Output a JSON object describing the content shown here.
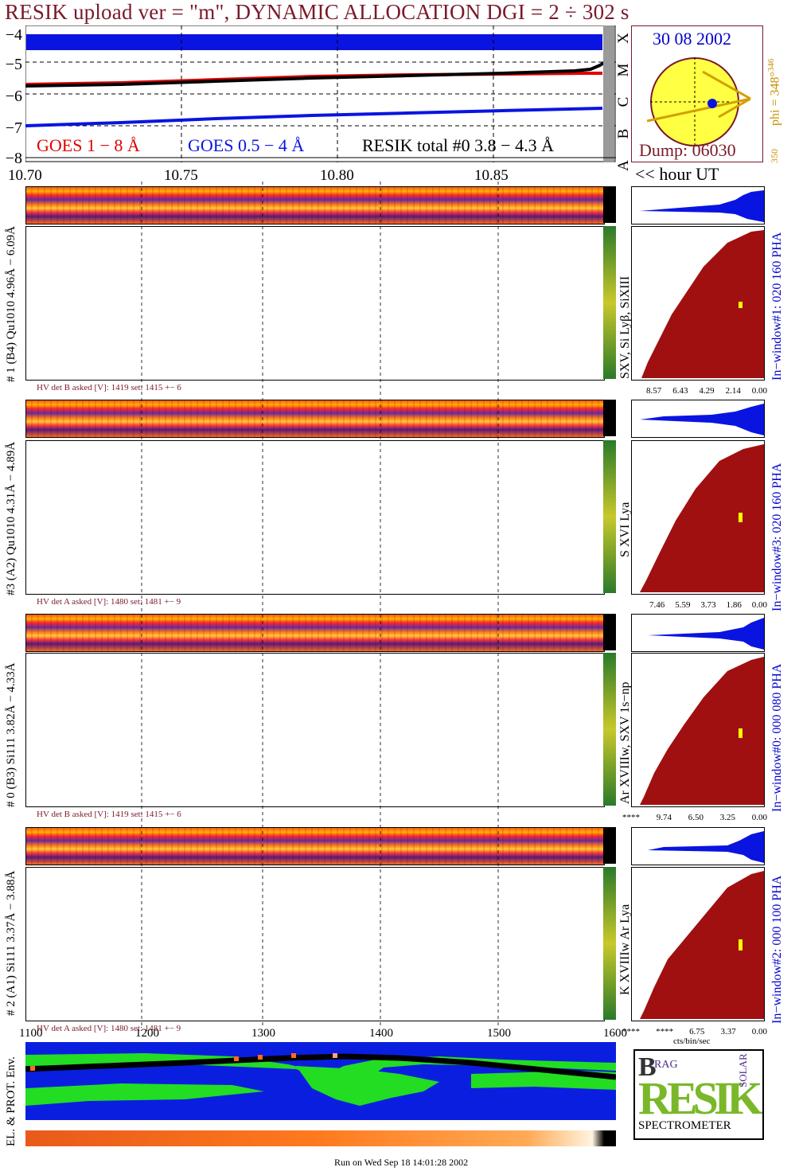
{
  "title": "RESIK upload ver = \"m\", DYNAMIC ALLOCATION  DGI =   2 ÷ 302 s",
  "lightcurve": {
    "y_ticks": [
      "−4",
      "−5",
      "−6",
      "−7",
      "−8"
    ],
    "x_ticks": [
      "10.70",
      "10.75",
      "10.80",
      "10.85"
    ],
    "goes_classes": [
      "X",
      "M",
      "C",
      "B",
      "A"
    ],
    "legend_goes18": "GOES 1 − 8 Å",
    "legend_goes054": "GOES 0.5 − 4 Å",
    "legend_resik": "RESIK total #0  3.8 − 4.3 Å",
    "x_unit": "<< hour UT",
    "colors": {
      "goes18": "#e00000",
      "goes054": "#0a14e0",
      "resik": "#000000"
    }
  },
  "sun_panel": {
    "date": "30 08 2002",
    "phi_label": "phi = 348°",
    "phi_sup": "346",
    "phi_bottom": "350",
    "dump": "Dump: 06030"
  },
  "channels": [
    {
      "side_label": "# 1 (B4) Qu1010 4.96Å − 6.09Å",
      "lines_label": "SXV, Si Lyβ, SiXIII",
      "hv": "HV det B asked [V]:  1419 set:  1415 +−    6",
      "window_label": "In−window#1:  020 160 PHA",
      "scale": [
        "8.57",
        "6.43",
        "4.29",
        "2.14",
        "0.00"
      ]
    },
    {
      "side_label": "#3 (A2) Qu1010  4.31Å − 4.89Å",
      "lines_label": "S XVI Lya",
      "hv": "HV det A asked [V]:  1480 set:  1481 +−    9",
      "window_label": "In−window#3:  020 160 PHA",
      "scale": [
        "7.46",
        "5.59",
        "3.73",
        "1.86",
        "0.00"
      ]
    },
    {
      "side_label": "# 0 (B3) Si111  3.82Å − 4.33Å",
      "lines_label": "Ar XVIIIw,  SXV 1s−np",
      "hv": "HV det B asked [V]:  1419 set:  1415 +−    6",
      "window_label": "In−window#0:  000 080 PHA",
      "scale": [
        "****",
        "9.74",
        "6.50",
        "3.25",
        "0.00"
      ]
    },
    {
      "side_label": "# 2 (A1) Si111  3.37Å − 3.88Å",
      "lines_label": "K XVIIIw  Ar Lya",
      "hv": "HV det A asked [V]:  1480 set:  1481 +−    9",
      "window_label": "In−window#2:  000 100 PHA",
      "scale": [
        "****",
        "****",
        "6.75",
        "3.37",
        "0.00"
      ],
      "scale_unit": "cts/bin/sec"
    }
  ],
  "bin_ticks": [
    "1100",
    "1200",
    "1300",
    "1400",
    "1500",
    "1600"
  ],
  "env_label": "EL. & PROT. Env.",
  "logo": {
    "b": "B",
    "rag": "RAG",
    "resik": "RESIK",
    "solar": "SOLAR",
    "spectrometer": "SPECTROMETER"
  },
  "footer": "Run on Wed Sep 18 14:01:28 2002"
}
